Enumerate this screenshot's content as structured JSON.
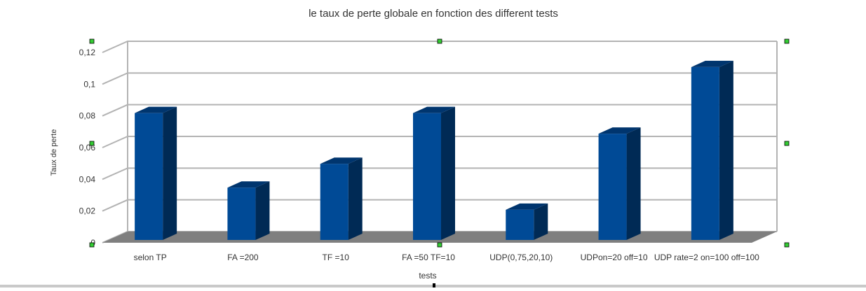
{
  "chart_data": {
    "type": "bar",
    "title": "le taux de perte globale en fonction des different tests",
    "xlabel": "tests",
    "ylabel": "Taux de perte",
    "categories": [
      "selon TP",
      "FA =200",
      "TF =10",
      "FA =50 TF=10",
      "UDP(0,75,20,10)",
      "UDPon=20 off=10",
      "UDP rate=2 on=100 off=100"
    ],
    "values": [
      0.08,
      0.033,
      0.048,
      0.08,
      0.019,
      0.067,
      0.109
    ],
    "ylim": [
      0,
      0.12
    ],
    "yticks": [
      "0",
      "0,02",
      "0,04",
      "0,06",
      "0,08",
      "0,1",
      "0,12"
    ],
    "grid": true,
    "style": "3d",
    "bar_colors": {
      "front": "#004a96",
      "side": "#002a55",
      "top": "#00356e"
    },
    "floor_color": "#7f7f7f",
    "grid_color": "#b3b3b3"
  }
}
